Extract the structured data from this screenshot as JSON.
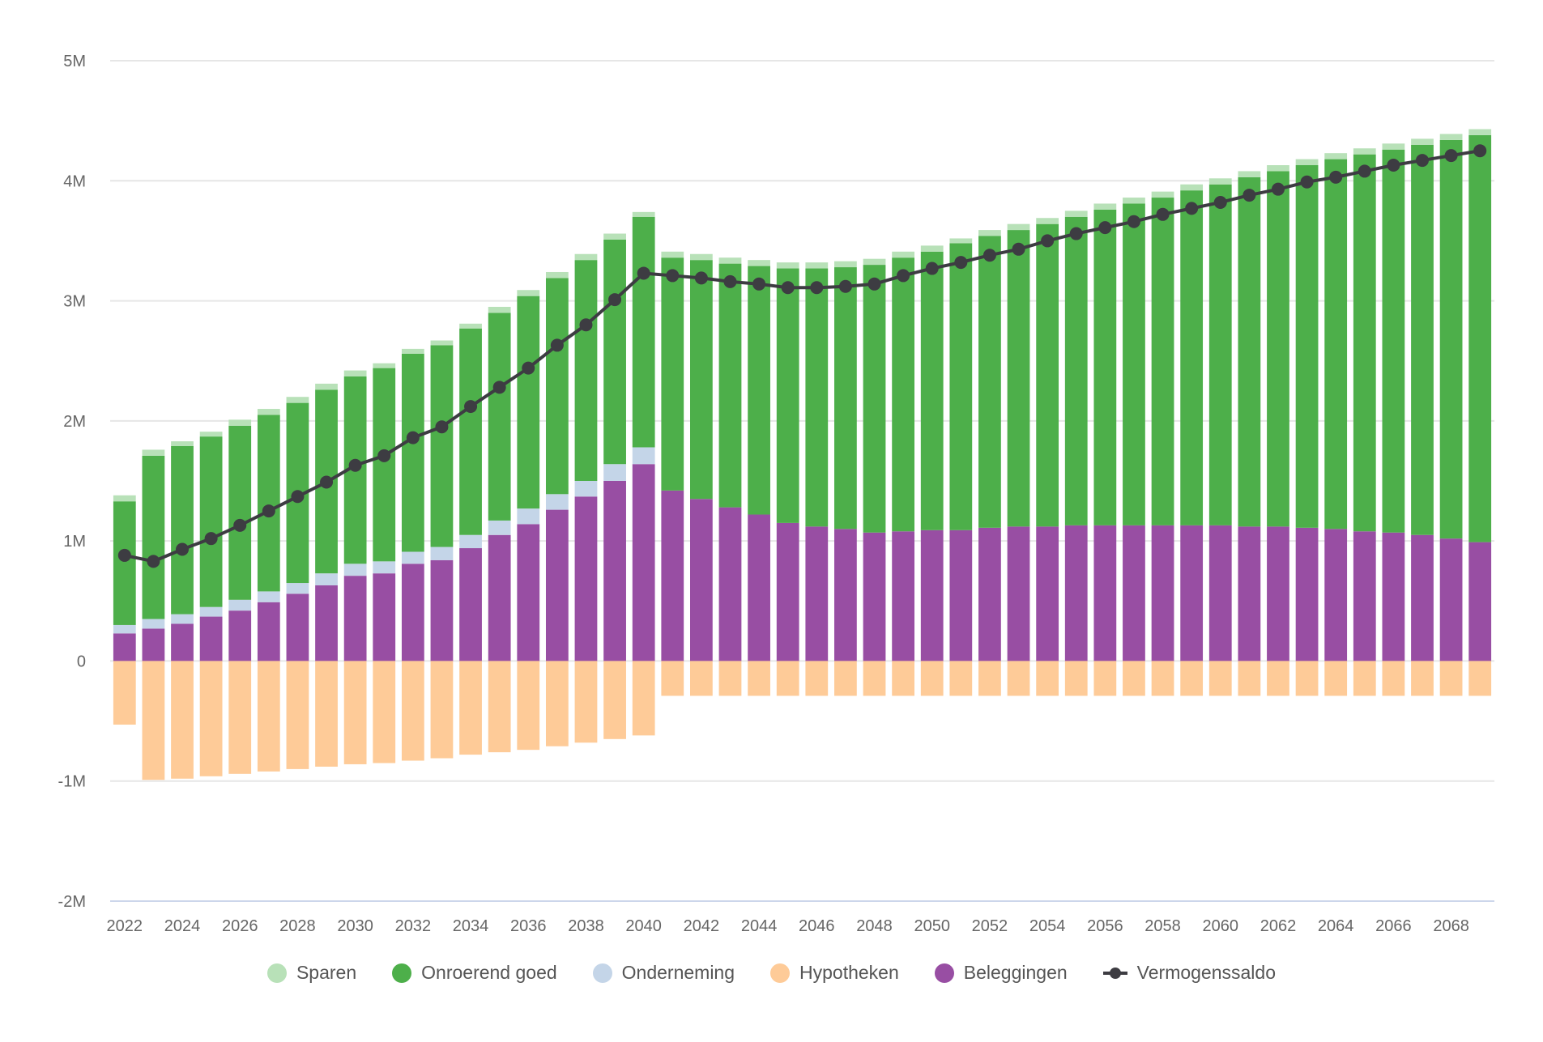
{
  "chart_data": {
    "type": "bar",
    "subtype": "stacked-bar-with-line",
    "title": "",
    "xlabel": "",
    "ylabel": "",
    "ylim": [
      -2000000,
      5000000
    ],
    "yticks": [
      {
        "value": 5000000,
        "label": "5M"
      },
      {
        "value": 4000000,
        "label": "4M"
      },
      {
        "value": 3000000,
        "label": "3M"
      },
      {
        "value": 2000000,
        "label": "2M"
      },
      {
        "value": 1000000,
        "label": "1M"
      },
      {
        "value": 0,
        "label": "0"
      },
      {
        "value": -1000000,
        "label": "-1M"
      },
      {
        "value": -2000000,
        "label": "-2M"
      }
    ],
    "grid": true,
    "legend_position": "bottom",
    "categories": [
      "2022",
      "2023",
      "2024",
      "2025",
      "2026",
      "2027",
      "2028",
      "2029",
      "2030",
      "2031",
      "2032",
      "2033",
      "2034",
      "2035",
      "2036",
      "2037",
      "2038",
      "2039",
      "2040",
      "2041",
      "2042",
      "2043",
      "2044",
      "2045",
      "2046",
      "2047",
      "2048",
      "2049",
      "2050",
      "2051",
      "2052",
      "2053",
      "2054",
      "2055",
      "2056",
      "2057",
      "2058",
      "2059",
      "2060",
      "2061",
      "2062",
      "2063",
      "2064",
      "2065",
      "2066",
      "2067",
      "2068",
      "2069"
    ],
    "xtick_labels": [
      "2022",
      "2024",
      "2026",
      "2028",
      "2030",
      "2032",
      "2034",
      "2036",
      "2038",
      "2040",
      "2042",
      "2044",
      "2046",
      "2048",
      "2050",
      "2052",
      "2054",
      "2056",
      "2058",
      "2060",
      "2062",
      "2064",
      "2066",
      "2068"
    ],
    "series": [
      {
        "name": "Beleggingen",
        "type": "bar",
        "color": "#984ea3",
        "values": [
          230000,
          270000,
          310000,
          370000,
          420000,
          490000,
          560000,
          630000,
          710000,
          730000,
          810000,
          840000,
          940000,
          1050000,
          1140000,
          1260000,
          1370000,
          1500000,
          1640000,
          1420000,
          1350000,
          1280000,
          1220000,
          1150000,
          1120000,
          1100000,
          1070000,
          1080000,
          1090000,
          1090000,
          1110000,
          1120000,
          1120000,
          1130000,
          1130000,
          1130000,
          1130000,
          1130000,
          1130000,
          1120000,
          1120000,
          1110000,
          1100000,
          1080000,
          1070000,
          1050000,
          1020000,
          990000
        ]
      },
      {
        "name": "Onderneming",
        "type": "bar",
        "color": "#c4d5e8",
        "values": [
          70000,
          80000,
          80000,
          80000,
          90000,
          90000,
          90000,
          100000,
          100000,
          100000,
          100000,
          110000,
          110000,
          120000,
          130000,
          130000,
          130000,
          140000,
          140000,
          0,
          0,
          0,
          0,
          0,
          0,
          0,
          0,
          0,
          0,
          0,
          0,
          0,
          0,
          0,
          0,
          0,
          0,
          0,
          0,
          0,
          0,
          0,
          0,
          0,
          0,
          0,
          0,
          0
        ]
      },
      {
        "name": "Onroerend goed",
        "type": "bar",
        "color": "#4daf4a",
        "values": [
          1030000,
          1360000,
          1400000,
          1420000,
          1450000,
          1470000,
          1500000,
          1530000,
          1560000,
          1610000,
          1650000,
          1680000,
          1720000,
          1730000,
          1770000,
          1800000,
          1840000,
          1870000,
          1920000,
          1940000,
          1990000,
          2030000,
          2070000,
          2120000,
          2150000,
          2180000,
          2230000,
          2280000,
          2320000,
          2390000,
          2430000,
          2470000,
          2520000,
          2570000,
          2630000,
          2680000,
          2730000,
          2790000,
          2840000,
          2910000,
          2960000,
          3020000,
          3080000,
          3140000,
          3190000,
          3250000,
          3320000,
          3390000
        ]
      },
      {
        "name": "Sparen",
        "type": "bar",
        "color": "#b8e1b8",
        "values": [
          50000,
          50000,
          40000,
          40000,
          50000,
          50000,
          50000,
          50000,
          50000,
          40000,
          40000,
          40000,
          40000,
          50000,
          50000,
          50000,
          50000,
          50000,
          40000,
          50000,
          50000,
          50000,
          50000,
          50000,
          50000,
          50000,
          50000,
          50000,
          50000,
          40000,
          50000,
          50000,
          50000,
          50000,
          50000,
          50000,
          50000,
          50000,
          50000,
          50000,
          50000,
          50000,
          50000,
          50000,
          50000,
          50000,
          50000,
          50000
        ]
      },
      {
        "name": "Hypotheken",
        "type": "bar",
        "color": "#fecb98",
        "values": [
          -530000,
          -990000,
          -980000,
          -960000,
          -940000,
          -920000,
          -900000,
          -880000,
          -860000,
          -850000,
          -830000,
          -810000,
          -780000,
          -760000,
          -740000,
          -710000,
          -680000,
          -650000,
          -620000,
          -290000,
          -290000,
          -290000,
          -290000,
          -290000,
          -290000,
          -290000,
          -290000,
          -290000,
          -290000,
          -290000,
          -290000,
          -290000,
          -290000,
          -290000,
          -290000,
          -290000,
          -290000,
          -290000,
          -290000,
          -290000,
          -290000,
          -290000,
          -290000,
          -290000,
          -290000,
          -290000,
          -290000,
          -290000
        ]
      },
      {
        "name": "Vermogenssaldo",
        "type": "line",
        "color": "#3d3c42",
        "values": [
          880000,
          830000,
          930000,
          1020000,
          1130000,
          1250000,
          1370000,
          1490000,
          1630000,
          1710000,
          1860000,
          1950000,
          2120000,
          2280000,
          2440000,
          2630000,
          2800000,
          3010000,
          3230000,
          3210000,
          3190000,
          3160000,
          3140000,
          3110000,
          3110000,
          3120000,
          3140000,
          3210000,
          3270000,
          3320000,
          3380000,
          3430000,
          3500000,
          3560000,
          3610000,
          3660000,
          3720000,
          3770000,
          3820000,
          3880000,
          3930000,
          3990000,
          4030000,
          4080000,
          4130000,
          4170000,
          4210000,
          4250000
        ]
      }
    ],
    "legend": [
      {
        "label": "Sparen",
        "color": "#b8e1b8",
        "marker": "dot"
      },
      {
        "label": "Onroerend goed",
        "color": "#4daf4a",
        "marker": "dot"
      },
      {
        "label": "Onderneming",
        "color": "#c4d5e8",
        "marker": "dot"
      },
      {
        "label": "Hypotheken",
        "color": "#fecb98",
        "marker": "dot"
      },
      {
        "label": "Beleggingen",
        "color": "#984ea3",
        "marker": "dot"
      },
      {
        "label": "Vermogenssaldo",
        "color": "#3d3c42",
        "marker": "line"
      }
    ],
    "colors": {
      "grid": "#e6e6e6",
      "axis_baseline": "#ccd6eb",
      "tick_text": "#666666"
    }
  }
}
